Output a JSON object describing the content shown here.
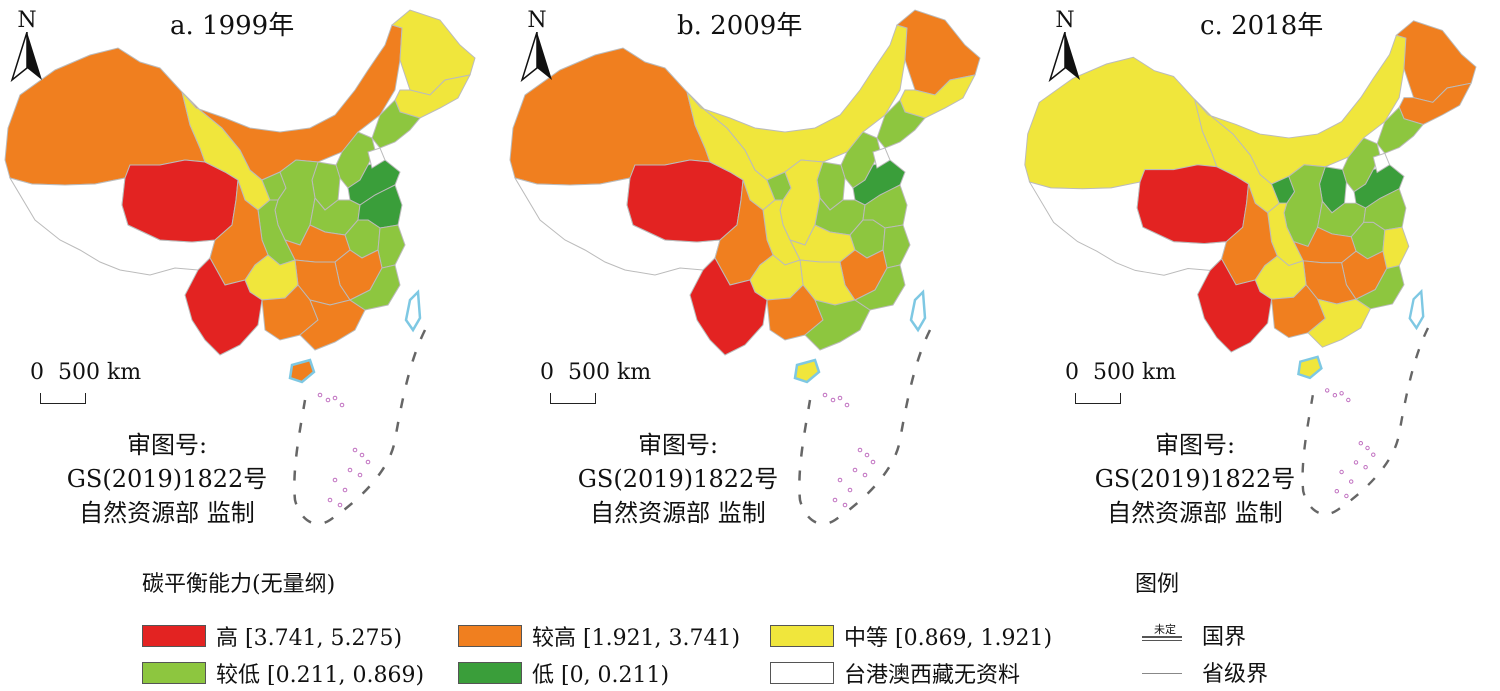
{
  "panels": [
    {
      "title": "a. 1999年",
      "colors": {
        "xinjiang": "orange",
        "tibet": "white",
        "qinghai": "red",
        "gansu": "yellow",
        "neimeng": "orange",
        "hlj": "yellow",
        "jilin": "yellow",
        "liaoning": "lightgreen",
        "hebei": "lightgreen",
        "shandong": "darkgreen",
        "jiangsu": "darkgreen",
        "shanxi": "lightgreen",
        "shaanxi": "lightgreen",
        "ningxia": "lightgreen",
        "sichuan": "orange",
        "chongqing": "lightgreen",
        "henan": "lightgreen",
        "hubei": "orange",
        "anhui": "lightgreen",
        "zhejiang": "lightgreen",
        "jiangxi": "orange",
        "hunan": "orange",
        "guizhou": "yellow",
        "yunnan": "red",
        "guangxi": "orange",
        "guangdong": "orange",
        "fujian": "lightgreen",
        "hainan": "orange"
      }
    },
    {
      "title": "b. 2009年",
      "colors": {
        "xinjiang": "orange",
        "tibet": "white",
        "qinghai": "red",
        "gansu": "yellow",
        "neimeng": "yellow",
        "hlj": "orange",
        "jilin": "yellow",
        "liaoning": "lightgreen",
        "hebei": "lightgreen",
        "shandong": "darkgreen",
        "jiangsu": "lightgreen",
        "shanxi": "lightgreen",
        "shaanxi": "yellow",
        "ningxia": "lightgreen",
        "sichuan": "orange",
        "chongqing": "yellow",
        "henan": "lightgreen",
        "hubei": "yellow",
        "anhui": "lightgreen",
        "zhejiang": "lightgreen",
        "jiangxi": "orange",
        "hunan": "yellow",
        "guizhou": "yellow",
        "yunnan": "red",
        "guangxi": "orange",
        "guangdong": "lightgreen",
        "fujian": "lightgreen",
        "hainan": "yellow"
      }
    },
    {
      "title": "c. 2018年",
      "colors": {
        "xinjiang": "yellow",
        "tibet": "white",
        "qinghai": "red",
        "gansu": "yellow",
        "neimeng": "yellow",
        "hlj": "orange",
        "jilin": "orange",
        "liaoning": "lightgreen",
        "hebei": "lightgreen",
        "shandong": "darkgreen",
        "jiangsu": "lightgreen",
        "shanxi": "darkgreen",
        "shaanxi": "lightgreen",
        "ningxia": "darkgreen",
        "sichuan": "orange",
        "chongqing": "yellow",
        "henan": "lightgreen",
        "hubei": "orange",
        "anhui": "lightgreen",
        "zhejiang": "yellow",
        "jiangxi": "orange",
        "hunan": "orange",
        "guizhou": "yellow",
        "yunnan": "red",
        "guangxi": "orange",
        "guangdong": "yellow",
        "fujian": "lightgreen",
        "hainan": "yellow"
      }
    }
  ],
  "north_label": "N",
  "scale_label": "0  500 km",
  "approval": {
    "line1": "审图号:",
    "line2": "GS(2019)1822号",
    "line3": "自然资源部 监制"
  },
  "legend": {
    "title": "碳平衡能力(无量纲)",
    "items": [
      {
        "key": "red",
        "label": "高 [3.741, 5.275)"
      },
      {
        "key": "orange",
        "label": "较高 [1.921, 3.741)"
      },
      {
        "key": "yellow",
        "label": "中等 [0.869, 1.921)"
      },
      {
        "key": "lightgreen",
        "label": "较低 [0.211, 0.869)"
      },
      {
        "key": "darkgreen",
        "label": "低 [0, 0.211)"
      },
      {
        "key": "white",
        "label": "台港澳西藏无资料"
      }
    ]
  },
  "legend2": {
    "title": "图例",
    "undetermined": "未定",
    "national": "国界",
    "provincial": "省级界"
  },
  "palette": {
    "red": "#e32322",
    "orange": "#f07f1f",
    "yellow": "#f0e63c",
    "lightgreen": "#8dc63f",
    "darkgreen": "#3a9e3a",
    "white": "#ffffff",
    "sea": "#7ec8e3"
  }
}
